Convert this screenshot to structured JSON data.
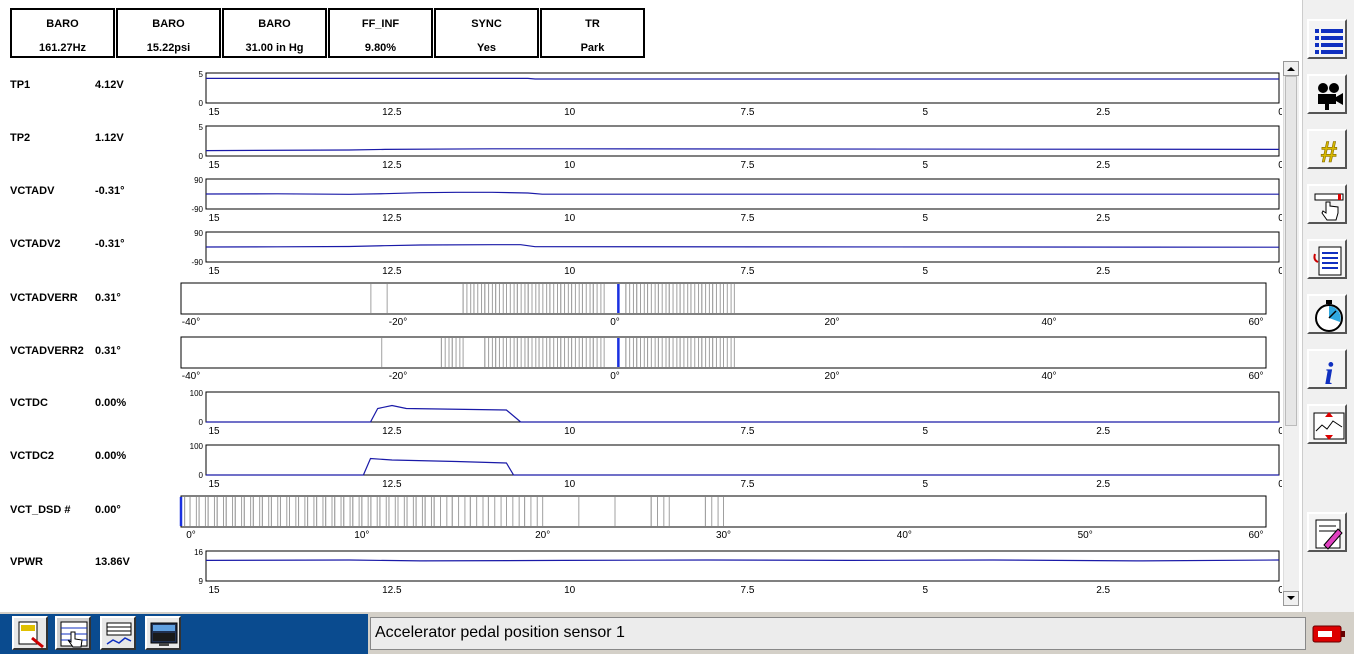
{
  "header_boxes": [
    {
      "label": "BARO",
      "value": "161.27Hz"
    },
    {
      "label": "BARO",
      "value": "15.22psi"
    },
    {
      "label": "BARO",
      "value": "31.00 in Hg"
    },
    {
      "label": "FF_INF",
      "value": "9.80%"
    },
    {
      "label": "SYNC",
      "value": "Yes"
    },
    {
      "label": "TR",
      "value": "Park"
    }
  ],
  "time_axis_ticks": [
    "15",
    "12.5",
    "10",
    "7.5",
    "5",
    "2.5",
    "0"
  ],
  "parameters": [
    {
      "name": "TP1",
      "value": "4.12V",
      "type": "line",
      "yticks": [
        "5",
        "0"
      ],
      "ylim": [
        0,
        5
      ],
      "points": [
        [
          15,
          4.1
        ],
        [
          10.5,
          4.1
        ],
        [
          10.4,
          4.0
        ],
        [
          0,
          4.0
        ]
      ]
    },
    {
      "name": "TP2",
      "value": "1.12V",
      "type": "line",
      "yticks": [
        "5",
        "0"
      ],
      "ylim": [
        0,
        5
      ],
      "points": [
        [
          15,
          0.9
        ],
        [
          13,
          1.0
        ],
        [
          12.5,
          1.1
        ],
        [
          11,
          1.2
        ],
        [
          10,
          1.2
        ],
        [
          0,
          1.1
        ]
      ]
    },
    {
      "name": "VCTADV",
      "value": "-0.31°",
      "type": "line",
      "yticks": [
        "90",
        "-90"
      ],
      "ylim": [
        -90,
        90
      ],
      "points": [
        [
          15,
          0
        ],
        [
          14,
          1
        ],
        [
          13,
          -2
        ],
        [
          12.5,
          2
        ],
        [
          12,
          8
        ],
        [
          11.5,
          10
        ],
        [
          11,
          10
        ],
        [
          10.5,
          6
        ],
        [
          10.3,
          -1
        ],
        [
          0,
          -1
        ]
      ]
    },
    {
      "name": "VCTADV2",
      "value": "-0.31°",
      "type": "line",
      "yticks": [
        "90",
        "-90"
      ],
      "ylim": [
        -90,
        90
      ],
      "points": [
        [
          15,
          0
        ],
        [
          14,
          1
        ],
        [
          13,
          3
        ],
        [
          12.5,
          8
        ],
        [
          12,
          12
        ],
        [
          11,
          14
        ],
        [
          10.6,
          14
        ],
        [
          10.4,
          2
        ],
        [
          0,
          -1
        ]
      ]
    },
    {
      "name": "VCTADVERR",
      "value": "0.31°",
      "type": "hist",
      "xticks": [
        "-40°",
        "-20°",
        "0°",
        "20°",
        "40°",
        "60°"
      ],
      "xlim": [
        -40,
        60
      ],
      "current": 0.31,
      "spread": [
        -22.5,
        -21,
        -14,
        -13,
        -12,
        -11,
        -10,
        -9,
        -8,
        -7,
        -6,
        -5,
        -4,
        -3,
        -2,
        -1,
        1,
        2,
        3,
        4,
        5,
        6,
        7,
        8,
        9,
        10,
        11
      ]
    },
    {
      "name": "VCTADVERR2",
      "value": "0.31°",
      "type": "hist",
      "xticks": [
        "-40°",
        "-20°",
        "0°",
        "20°",
        "40°",
        "60°"
      ],
      "xlim": [
        -40,
        60
      ],
      "current": 0.31,
      "spread": [
        -21.5,
        -16,
        -15,
        -14,
        -12,
        -11,
        -10,
        -9,
        -8,
        -7,
        -6,
        -5,
        -4,
        -3,
        -2,
        -1,
        1,
        2,
        3,
        4,
        5,
        6,
        7,
        8,
        9,
        10,
        11
      ]
    },
    {
      "name": "VCTDC",
      "value": "0.00%",
      "type": "line",
      "yticks": [
        "100",
        "0"
      ],
      "ylim": [
        0,
        100
      ],
      "points": [
        [
          15,
          0
        ],
        [
          12.7,
          0
        ],
        [
          12.6,
          45
        ],
        [
          12.4,
          55
        ],
        [
          12.2,
          45
        ],
        [
          10.8,
          40
        ],
        [
          10.6,
          0
        ],
        [
          0,
          0
        ]
      ]
    },
    {
      "name": "VCTDC2",
      "value": "0.00%",
      "type": "line",
      "yticks": [
        "100",
        "0"
      ],
      "ylim": [
        0,
        100
      ],
      "points": [
        [
          15,
          0
        ],
        [
          12.8,
          0
        ],
        [
          12.7,
          55
        ],
        [
          12.4,
          50
        ],
        [
          11.5,
          45
        ],
        [
          10.8,
          40
        ],
        [
          10.7,
          0
        ],
        [
          0,
          0
        ]
      ]
    },
    {
      "name": "VCT_DSD #",
      "value": "0.00°",
      "type": "hist",
      "xticks": [
        "0°",
        "10°",
        "20°",
        "30°",
        "40°",
        "50°",
        "60°"
      ],
      "xlim": [
        0,
        60
      ],
      "current": 0,
      "spread": [
        0.2,
        0.5,
        1,
        1.5,
        2,
        2.5,
        3,
        3.5,
        4,
        4.5,
        5,
        5.5,
        6,
        6.5,
        7,
        7.5,
        8,
        8.5,
        9,
        9.5,
        10,
        10.5,
        11,
        11.5,
        12,
        12.5,
        13,
        13.5,
        14,
        15,
        16,
        17,
        18,
        19,
        20,
        22,
        24,
        26,
        27,
        29,
        30
      ]
    },
    {
      "name": "VPWR",
      "value": "13.86V",
      "type": "line",
      "yticks": [
        "16",
        "9"
      ],
      "ylim": [
        9,
        16
      ],
      "points": [
        [
          15,
          13.8
        ],
        [
          13,
          13.9
        ],
        [
          12,
          13.7
        ],
        [
          10,
          13.8
        ],
        [
          8,
          13.9
        ],
        [
          6,
          13.8
        ],
        [
          4,
          13.9
        ],
        [
          2,
          13.7
        ],
        [
          0,
          13.9
        ]
      ]
    }
  ],
  "toolbar_icons": [
    "list-icon",
    "camera-icon",
    "hash-icon",
    "hand-pointer-icon",
    "report-icon",
    "stopwatch-icon",
    "info-icon",
    "graph-zoom-icon",
    "edit-icon"
  ],
  "bottom_buttons": [
    "search-doc-icon",
    "hand-grid-icon",
    "list-graph-icon",
    "monitor-icon"
  ],
  "status_text": "Accelerator pedal position sensor 1",
  "colors": {
    "trace": "#1a1aa8",
    "current": "#1a30e0",
    "spread": "#a0a0a0",
    "blue_panel": "#0a4b8f"
  }
}
